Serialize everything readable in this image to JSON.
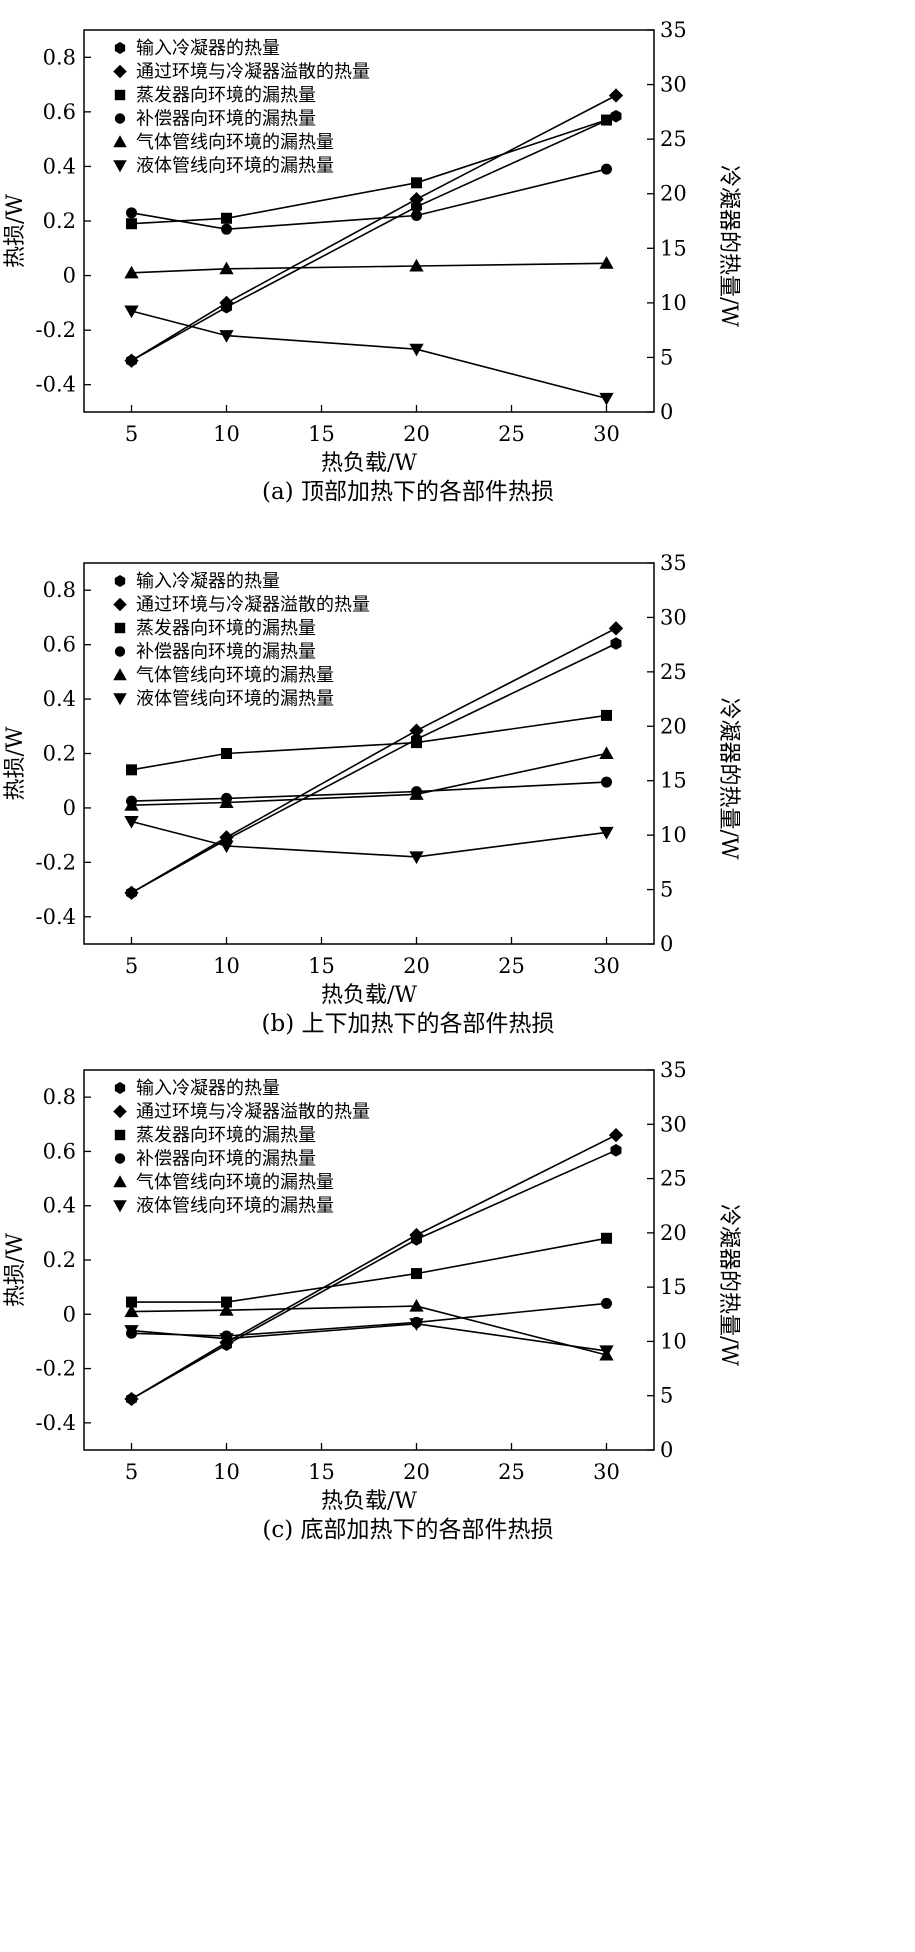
{
  "legend_labels": [
    "输入冷凝器的热量",
    "通过环境与冷凝器溢散的热量",
    "蒸发器向环境的漏热量",
    "补偿器向环境的漏热量",
    "气体管线向环境的漏热量",
    "液体管线向环境的漏热量"
  ],
  "chart_data": [
    {
      "type": "line",
      "caption": "(a) 顶部加热下的各部件热损",
      "xlabel": "热负载/W",
      "ylabel_left": "热损/W",
      "ylabel_right": "冷凝器的热量/W",
      "x_ticks": [
        5,
        10,
        15,
        20,
        25,
        30
      ],
      "y_left_ticks": [
        -0.4,
        -0.2,
        0,
        0.2,
        0.4,
        0.6,
        0.8
      ],
      "y_left_tick_labels": [
        "-0.4",
        "-0.2",
        "0",
        "0.2",
        "0.4",
        "0.6",
        "0.8"
      ],
      "y_right_ticks": [
        0,
        5,
        10,
        15,
        20,
        25,
        30,
        35
      ],
      "xlim": [
        2.5,
        32.5
      ],
      "ylim_left": [
        -0.5,
        0.9
      ],
      "ylim_right": [
        0,
        35
      ],
      "grid": false,
      "legend_position": "top-left",
      "series": [
        {
          "name": "输入冷凝器的热量",
          "axis": "right",
          "marker": "hexagon",
          "x": [
            5,
            10,
            20,
            30.5
          ],
          "y": [
            4.7,
            9.6,
            18.8,
            27.1
          ]
        },
        {
          "name": "通过环境与冷凝器溢散的热量",
          "axis": "right",
          "marker": "diamond",
          "x": [
            5,
            10,
            20,
            30.5
          ],
          "y": [
            4.7,
            10.0,
            19.5,
            29.0
          ]
        },
        {
          "name": "蒸发器向环境的漏热量",
          "axis": "left",
          "marker": "square",
          "x": [
            5,
            10,
            20,
            30
          ],
          "y": [
            0.19,
            0.21,
            0.34,
            0.57
          ]
        },
        {
          "name": "补偿器向环境的漏热量",
          "axis": "left",
          "marker": "circle",
          "x": [
            5,
            10,
            20,
            30
          ],
          "y": [
            0.23,
            0.17,
            0.22,
            0.39
          ]
        },
        {
          "name": "气体管线向环境的漏热量",
          "axis": "left",
          "marker": "triangle-up",
          "x": [
            5,
            10,
            20,
            30
          ],
          "y": [
            0.01,
            0.025,
            0.035,
            0.045
          ]
        },
        {
          "name": "液体管线向环境的漏热量",
          "axis": "left",
          "marker": "triangle-down",
          "x": [
            5,
            10,
            20,
            30
          ],
          "y": [
            -0.13,
            -0.22,
            -0.27,
            -0.45
          ]
        }
      ]
    },
    {
      "type": "line",
      "caption": "(b) 上下加热下的各部件热损",
      "xlabel": "热负载/W",
      "ylabel_left": "热损/W",
      "ylabel_right": "冷凝器的热量/W",
      "x_ticks": [
        5,
        10,
        15,
        20,
        25,
        30
      ],
      "y_left_ticks": [
        -0.4,
        -0.2,
        0,
        0.2,
        0.4,
        0.6,
        0.8
      ],
      "y_left_tick_labels": [
        "-0.4",
        "-0.2",
        "0",
        "0.2",
        "0.4",
        "0.6",
        "0.8"
      ],
      "y_right_ticks": [
        0,
        5,
        10,
        15,
        20,
        25,
        30,
        35
      ],
      "xlim": [
        2.5,
        32.5
      ],
      "ylim_left": [
        -0.5,
        0.9
      ],
      "ylim_right": [
        0,
        35
      ],
      "grid": false,
      "legend_position": "top-left",
      "series": [
        {
          "name": "输入冷凝器的热量",
          "axis": "right",
          "marker": "hexagon",
          "x": [
            5,
            10,
            20,
            30.5
          ],
          "y": [
            4.7,
            9.6,
            18.8,
            27.6
          ]
        },
        {
          "name": "通过环境与冷凝器溢散的热量",
          "axis": "right",
          "marker": "diamond",
          "x": [
            5,
            10,
            20,
            30.5
          ],
          "y": [
            4.7,
            9.8,
            19.6,
            29.0
          ]
        },
        {
          "name": "蒸发器向环境的漏热量",
          "axis": "left",
          "marker": "square",
          "x": [
            5,
            10,
            20,
            30
          ],
          "y": [
            0.14,
            0.2,
            0.24,
            0.34
          ]
        },
        {
          "name": "补偿器向环境的漏热量",
          "axis": "left",
          "marker": "circle",
          "x": [
            5,
            10,
            20,
            30
          ],
          "y": [
            0.025,
            0.035,
            0.06,
            0.095
          ]
        },
        {
          "name": "气体管线向环境的漏热量",
          "axis": "left",
          "marker": "triangle-up",
          "x": [
            5,
            10,
            20,
            30
          ],
          "y": [
            0.01,
            0.02,
            0.05,
            0.2
          ]
        },
        {
          "name": "液体管线向环境的漏热量",
          "axis": "left",
          "marker": "triangle-down",
          "x": [
            5,
            10,
            20,
            30
          ],
          "y": [
            -0.05,
            -0.14,
            -0.18,
            -0.09
          ]
        }
      ]
    },
    {
      "type": "line",
      "caption": "(c) 底部加热下的各部件热损",
      "xlabel": "热负载/W",
      "ylabel_left": "热损/W",
      "ylabel_right": "冷凝器的热量/W",
      "x_ticks": [
        5,
        10,
        15,
        20,
        25,
        30
      ],
      "y_left_ticks": [
        -0.4,
        -0.2,
        0,
        0.2,
        0.4,
        0.6,
        0.8
      ],
      "y_left_tick_labels": [
        "-0.4",
        "-0.2",
        "0",
        "0.2",
        "0.4",
        "0.6",
        "0.8"
      ],
      "y_right_ticks": [
        0,
        5,
        10,
        15,
        20,
        25,
        30,
        35
      ],
      "xlim": [
        2.5,
        32.5
      ],
      "ylim_left": [
        -0.5,
        0.9
      ],
      "ylim_right": [
        0,
        35
      ],
      "grid": false,
      "legend_position": "top-left",
      "series": [
        {
          "name": "输入冷凝器的热量",
          "axis": "right",
          "marker": "hexagon",
          "x": [
            5,
            10,
            20,
            30.5
          ],
          "y": [
            4.7,
            9.7,
            19.4,
            27.6
          ]
        },
        {
          "name": "通过环境与冷凝器溢散的热量",
          "axis": "right",
          "marker": "diamond",
          "x": [
            5,
            10,
            20,
            30.5
          ],
          "y": [
            4.7,
            9.9,
            19.8,
            29.0
          ]
        },
        {
          "name": "蒸发器向环境的漏热量",
          "axis": "left",
          "marker": "square",
          "x": [
            5,
            10,
            20,
            30
          ],
          "y": [
            0.045,
            0.045,
            0.15,
            0.28
          ]
        },
        {
          "name": "补偿器向环境的漏热量",
          "axis": "left",
          "marker": "circle",
          "x": [
            5,
            10,
            20,
            30
          ],
          "y": [
            -0.07,
            -0.08,
            -0.03,
            0.04
          ]
        },
        {
          "name": "气体管线向环境的漏热量",
          "axis": "left",
          "marker": "triangle-up",
          "x": [
            5,
            10,
            20,
            30
          ],
          "y": [
            0.01,
            0.015,
            0.03,
            -0.15
          ]
        },
        {
          "name": "液体管线向环境的漏热量",
          "axis": "left",
          "marker": "triangle-down",
          "x": [
            5,
            10,
            20,
            30
          ],
          "y": [
            -0.06,
            -0.09,
            -0.035,
            -0.135
          ]
        }
      ]
    }
  ]
}
